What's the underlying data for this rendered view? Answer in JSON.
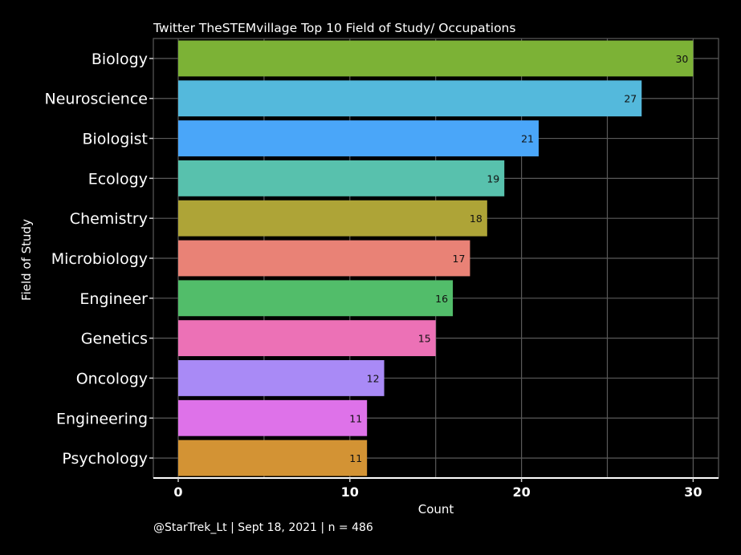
{
  "chart_data": {
    "type": "bar",
    "orientation": "horizontal",
    "title": "Twitter TheSTEMvillage Top 10 Field of Study/ Occupations",
    "xlabel": "Count",
    "ylabel": "Field of Study",
    "caption": "@StarTrek_Lt | Sept 18, 2021 | n = 486",
    "categories": [
      "Biology",
      "Neuroscience",
      "Biologist",
      "Ecology",
      "Chemistry",
      "Microbiology",
      "Engineer",
      "Genetics",
      "Oncology",
      "Engineering",
      "Psychology"
    ],
    "values": [
      30,
      27,
      21,
      19,
      18,
      17,
      16,
      15,
      12,
      11,
      11
    ],
    "colors": [
      "#7cb236",
      "#54b9dc",
      "#4aa6f9",
      "#58c1ad",
      "#aea437",
      "#e98276",
      "#52bd6a",
      "#ec71b6",
      "#a98af6",
      "#de72e9",
      "#d39334"
    ],
    "xticks": [
      "0",
      "10",
      "20",
      "30"
    ],
    "xlim": [
      -1.5,
      31.5
    ],
    "grid": true,
    "legend": "none",
    "background": "#000000"
  }
}
